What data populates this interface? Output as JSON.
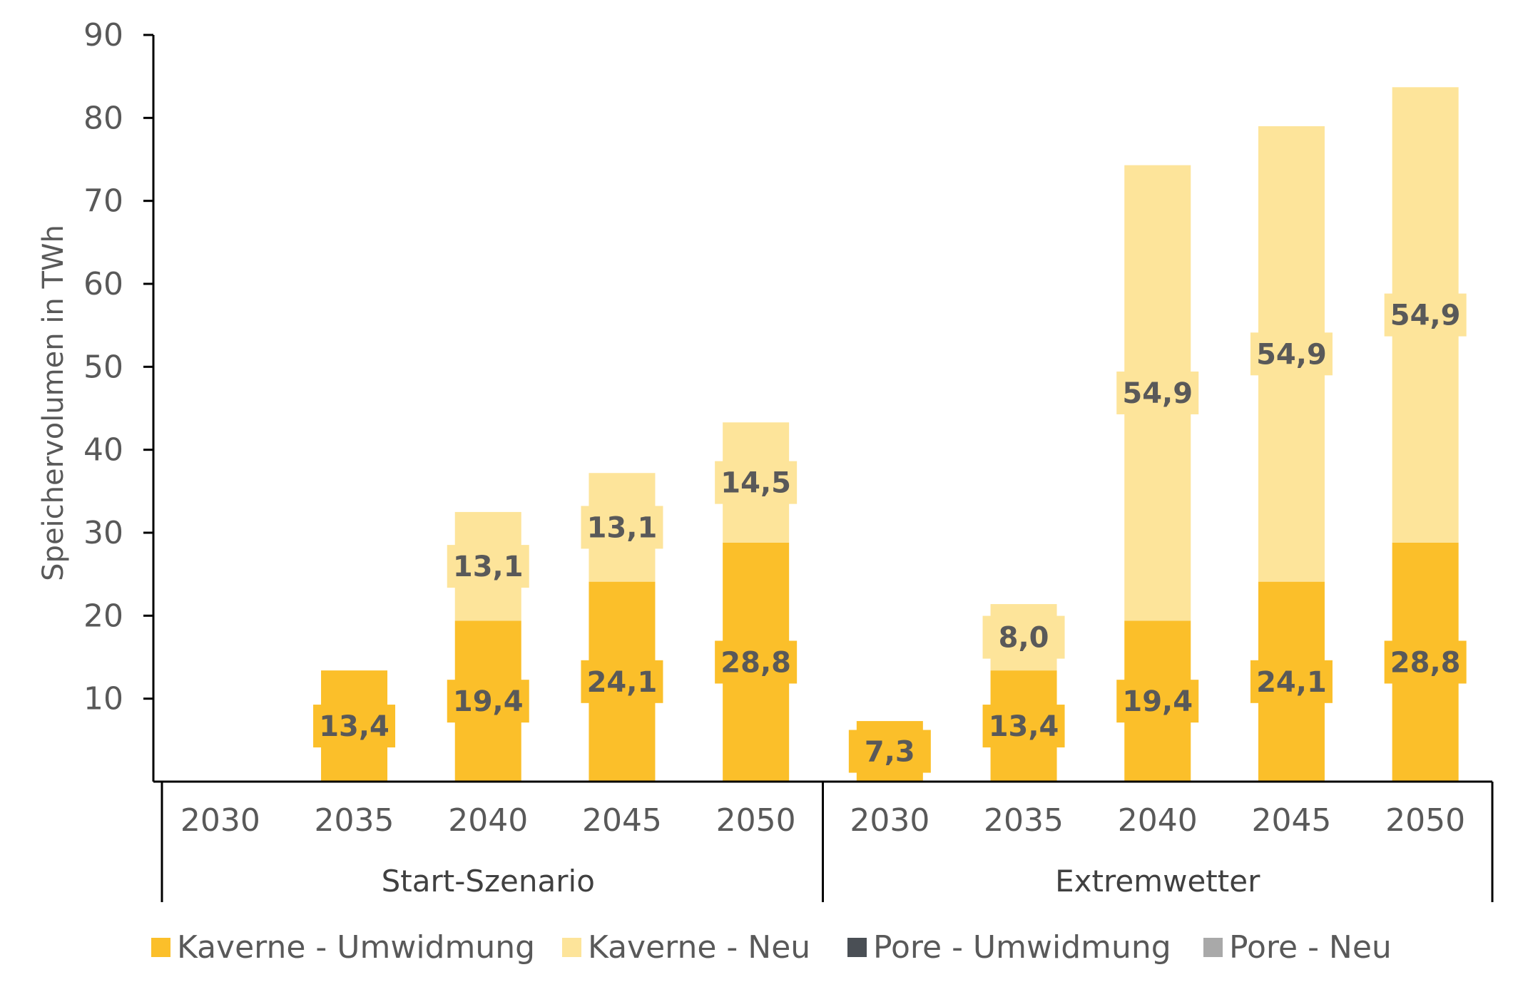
{
  "chart_data": {
    "type": "bar",
    "stacked": true,
    "title": "",
    "ylabel": "Speichervolumen in TWh",
    "ylim": [
      0,
      90
    ],
    "yticks": [
      "10",
      "20",
      "30",
      "40",
      "50",
      "60",
      "70",
      "80",
      "90"
    ],
    "groups": [
      {
        "label": "Start-Szenario",
        "categories": [
          "2030",
          "2035",
          "2040",
          "2045",
          "2050"
        ]
      },
      {
        "label": "Extremwetter",
        "categories": [
          "2030",
          "2035",
          "2040",
          "2045",
          "2050"
        ]
      }
    ],
    "series": [
      {
        "name": "Kaverne - Umwidmung",
        "color": "#FBBF2A",
        "values": [
          null,
          13.4,
          19.4,
          24.1,
          28.8,
          7.3,
          13.4,
          19.4,
          24.1,
          28.8
        ],
        "labels": [
          "",
          "13,4",
          "19,4",
          "24,1",
          "28,8",
          "7,3",
          "13,4",
          "19,4",
          "24,1",
          "28,8"
        ]
      },
      {
        "name": "Kaverne - Neu",
        "color": "#FDE49A",
        "values": [
          null,
          null,
          13.1,
          13.1,
          14.5,
          null,
          8.0,
          54.9,
          54.9,
          54.9
        ],
        "labels": [
          "",
          "",
          "13,1",
          "13,1",
          "14,5",
          "",
          "8,0",
          "54,9",
          "54,9",
          "54,9"
        ]
      },
      {
        "name": "Pore - Umwidmung",
        "color": "#4A4F55",
        "values": [
          null,
          null,
          null,
          null,
          null,
          null,
          null,
          null,
          null,
          null
        ],
        "labels": [
          "",
          "",
          "",
          "",
          "",
          "",
          "",
          "",
          "",
          ""
        ]
      },
      {
        "name": "Pore - Neu",
        "color": "#A9A9A9",
        "values": [
          null,
          null,
          null,
          null,
          null,
          null,
          null,
          null,
          null,
          null
        ],
        "labels": [
          "",
          "",
          "",
          "",
          "",
          "",
          "",
          "",
          "",
          ""
        ]
      }
    ],
    "legend": "bottom",
    "grid": false
  }
}
